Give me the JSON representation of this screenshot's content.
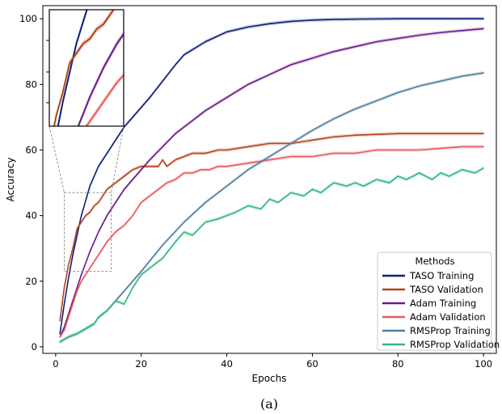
{
  "caption": "(a)",
  "chart_data": {
    "type": "line",
    "xlabel": "Epochs",
    "ylabel": "Accuracy",
    "xlim": [
      -3,
      103
    ],
    "ylim": [
      -2,
      104
    ],
    "xticks": [
      0,
      20,
      40,
      60,
      80,
      100
    ],
    "yticks": [
      0,
      20,
      40,
      60,
      80,
      100
    ],
    "grid": false,
    "legend": {
      "title": "Methods",
      "placement": "lower-right"
    },
    "series": [
      {
        "name": "TASO Training",
        "color": "#0d1f7a",
        "x": [
          1,
          2,
          3,
          4,
          5,
          6,
          8,
          10,
          12,
          14,
          16,
          18,
          20,
          22,
          25,
          28,
          30,
          35,
          40,
          45,
          50,
          55,
          60,
          65,
          70,
          80,
          90,
          100
        ],
        "y": [
          4,
          13,
          21,
          28,
          34,
          40,
          49,
          55,
          59,
          63,
          67,
          70,
          73,
          76,
          81,
          86,
          89,
          93,
          96,
          97.5,
          98.5,
          99.2,
          99.6,
          99.8,
          99.9,
          100,
          100,
          100
        ]
      },
      {
        "name": "TASO Validation",
        "color": "#b5441a",
        "x": [
          1,
          2,
          3,
          4,
          5,
          6,
          7,
          8,
          9,
          10,
          11,
          12,
          13,
          14,
          15,
          16,
          18,
          20,
          22,
          24,
          25,
          26,
          28,
          30,
          32,
          35,
          38,
          40,
          45,
          50,
          55,
          60,
          65,
          70,
          80,
          90,
          100
        ],
        "y": [
          8,
          18,
          25,
          30,
          36,
          38,
          40,
          41,
          43,
          44,
          46,
          48,
          49,
          50,
          51,
          52,
          54,
          55,
          55,
          55,
          57,
          55,
          57,
          58,
          59,
          59,
          60,
          60,
          61,
          62,
          62,
          63,
          64,
          64.5,
          65,
          65,
          65
        ]
      },
      {
        "name": "Adam Training",
        "color": "#6a1b8a",
        "x": [
          1,
          2,
          3,
          4,
          5,
          6,
          8,
          10,
          12,
          14,
          16,
          18,
          20,
          22,
          25,
          28,
          30,
          35,
          40,
          45,
          50,
          55,
          60,
          65,
          70,
          75,
          80,
          85,
          90,
          95,
          100
        ],
        "y": [
          3,
          6,
          10,
          14,
          18,
          22,
          29,
          35,
          40,
          44,
          48,
          51,
          54,
          57,
          61,
          65,
          67,
          72,
          76,
          80,
          83,
          86,
          88,
          90,
          91.5,
          93,
          94,
          95,
          95.8,
          96.4,
          97
        ]
      },
      {
        "name": "Adam Validation",
        "color": "#e85b5b",
        "x": [
          1,
          2,
          3,
          4,
          5,
          6,
          7,
          8,
          9,
          10,
          11,
          12,
          14,
          16,
          18,
          20,
          22,
          24,
          26,
          28,
          30,
          32,
          34,
          36,
          38,
          40,
          45,
          50,
          55,
          60,
          65,
          70,
          75,
          80,
          85,
          90,
          95,
          100
        ],
        "y": [
          3,
          5,
          9,
          13,
          17,
          20,
          22,
          24,
          26,
          28,
          30,
          32,
          35,
          37,
          40,
          44,
          46,
          48,
          50,
          51,
          53,
          53,
          54,
          54,
          55,
          55,
          56,
          57,
          58,
          58,
          59,
          59,
          60,
          60,
          60,
          60.5,
          61,
          61
        ]
      },
      {
        "name": "RMSProp Training",
        "color": "#4f7f9e",
        "x": [
          1,
          3,
          5,
          7,
          9,
          10,
          12,
          14,
          16,
          18,
          20,
          25,
          30,
          35,
          40,
          45,
          50,
          55,
          60,
          65,
          70,
          75,
          80,
          85,
          90,
          95,
          100
        ],
        "y": [
          1.5,
          3,
          4,
          5.5,
          7,
          9,
          11,
          14,
          17,
          20,
          23,
          31,
          38,
          44,
          49,
          54,
          58,
          62,
          66,
          69.5,
          72.5,
          75,
          77.5,
          79.5,
          81,
          82.5,
          83.5
        ]
      },
      {
        "name": "RMSProp Validation",
        "color": "#33b882",
        "x": [
          1,
          3,
          5,
          7,
          9,
          10,
          12,
          14,
          16,
          18,
          20,
          22,
          25,
          28,
          30,
          32,
          35,
          38,
          40,
          42,
          45,
          48,
          50,
          52,
          55,
          58,
          60,
          62,
          65,
          68,
          70,
          72,
          75,
          78,
          80,
          82,
          85,
          88,
          90,
          92,
          95,
          98,
          100
        ],
        "y": [
          1.5,
          3,
          4,
          5.5,
          7,
          9,
          11,
          14,
          13,
          18,
          22,
          24,
          27,
          32,
          35,
          34,
          38,
          39,
          40,
          41,
          43,
          42,
          45,
          44,
          47,
          46,
          48,
          47,
          50,
          49,
          50,
          49,
          51,
          50,
          52,
          51,
          53,
          51,
          53,
          52,
          54,
          53,
          54.5
        ]
      }
    ],
    "inset": {
      "xlim": [
        2,
        13
      ],
      "ylim": [
        23,
        47
      ]
    }
  }
}
